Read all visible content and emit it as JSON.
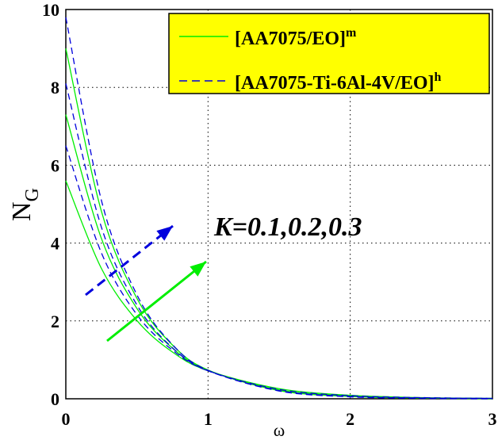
{
  "chart_data": {
    "type": "line",
    "xlabel": "ω",
    "ylabel": "N",
    "ylabel_sub": "G",
    "xlim": [
      0,
      3
    ],
    "ylim": [
      0,
      10
    ],
    "xticks": [
      "0",
      "1",
      "2",
      "3"
    ],
    "yticks": [
      "0",
      "2",
      "4",
      "6",
      "8",
      "10"
    ],
    "grid": true,
    "legend_position": "top-right",
    "legend_bg": "#ffff00",
    "x": [
      0,
      0.25,
      0.5,
      0.75,
      1,
      1.5,
      2,
      2.5,
      3
    ],
    "series": [
      {
        "name": "[AA7075/EO]",
        "sup": "m",
        "color": "#00ee00",
        "dash": false,
        "values": [
          5.6,
          3.35,
          2.01,
          1.2,
          0.72,
          0.26,
          0.09,
          0.03,
          0.01
        ]
      },
      {
        "color": "#00ee00",
        "dash": false,
        "values": [
          7.3,
          4.12,
          2.32,
          1.3,
          0.73,
          0.23,
          0.07,
          0.02,
          0.01
        ]
      },
      {
        "color": "#00ee00",
        "dash": false,
        "values": [
          9.0,
          4.82,
          2.58,
          1.38,
          0.74,
          0.21,
          0.06,
          0.02,
          0.0
        ]
      },
      {
        "name": "[AA7075-Ti-6Al-4V/EO]",
        "sup": "h",
        "color": "#0000dd",
        "dash": true,
        "values": [
          6.5,
          3.75,
          2.16,
          1.25,
          0.72,
          0.24,
          0.08,
          0.03,
          0.01
        ]
      },
      {
        "color": "#0000dd",
        "dash": true,
        "values": [
          8.1,
          4.41,
          2.41,
          1.31,
          0.72,
          0.21,
          0.06,
          0.02,
          0.01
        ]
      },
      {
        "color": "#0000dd",
        "dash": true,
        "values": [
          9.8,
          5.1,
          2.67,
          1.39,
          0.73,
          0.2,
          0.05,
          0.01,
          0.0
        ]
      }
    ],
    "annotation": "K=0.1,0.2,0.3"
  }
}
